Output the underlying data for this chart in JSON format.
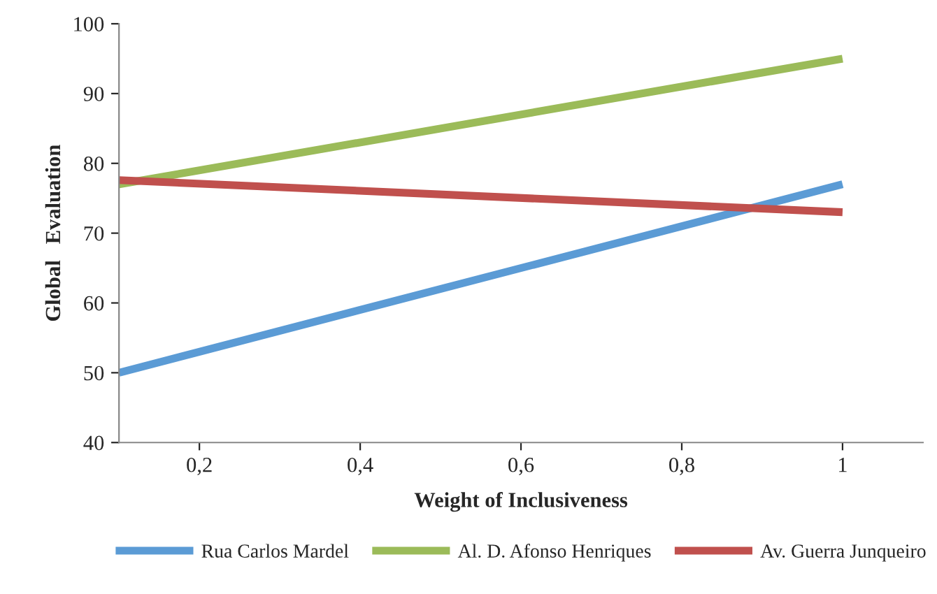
{
  "chart_data": {
    "type": "line",
    "xlabel": "Weight of Inclusiveness",
    "ylabel": "Global   Evaluation",
    "x": [
      0.1,
      1
    ],
    "series": [
      {
        "name": "Rua Carlos Mardel",
        "color": "#5b9bd5",
        "values": [
          50,
          77
        ]
      },
      {
        "name": "Al. D. Afonso Henriques",
        "color": "#9bbb59",
        "values": [
          77,
          95
        ]
      },
      {
        "name": "Av. Guerra Junqueiro",
        "color": "#c0504d",
        "values": [
          77.6,
          73
        ]
      }
    ],
    "xlim": [
      0.1,
      1.1
    ],
    "xticks": [
      {
        "value": 0.2,
        "label": "0,2"
      },
      {
        "value": 0.4,
        "label": "0,4"
      },
      {
        "value": 0.6,
        "label": "0,6"
      },
      {
        "value": 0.8,
        "label": "0,8"
      },
      1
    ],
    "ylim": [
      40,
      100
    ],
    "yticks": [
      40,
      50,
      60,
      70,
      80,
      90,
      100
    ],
    "grid": false,
    "legend": "bottom",
    "marker": "none",
    "line_style": "solid"
  }
}
